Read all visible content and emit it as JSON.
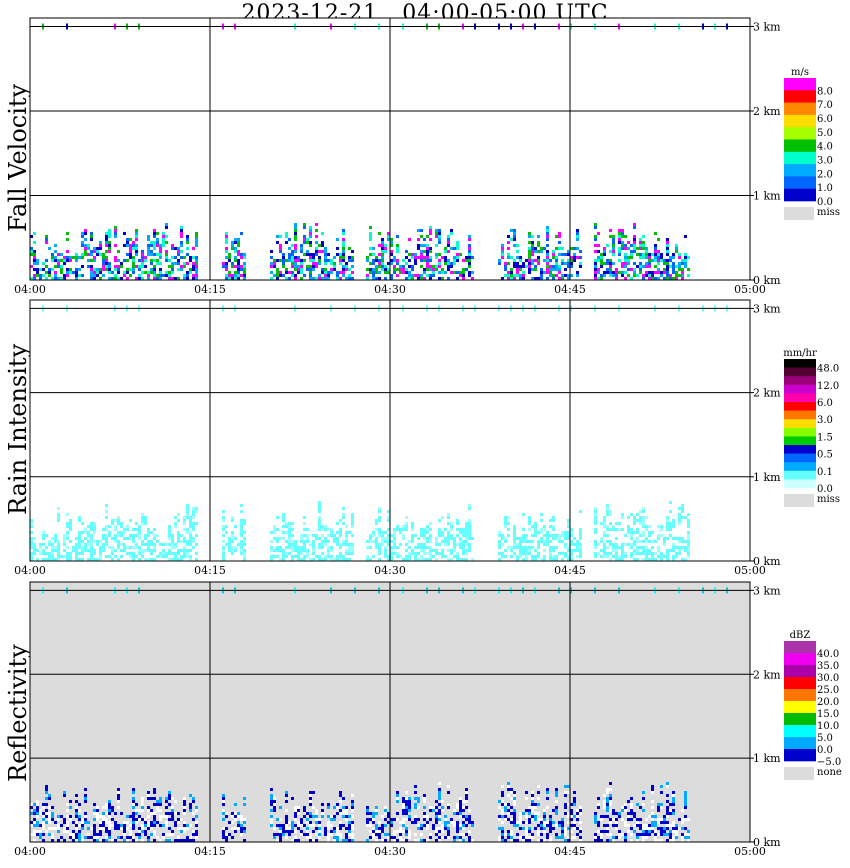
{
  "title": "2023-12-21   04:00-05:00 UTC",
  "chart_data": [
    {
      "type": "heatmap",
      "panel": "Fall Velocity",
      "unit": "m/s",
      "x_ticks": [
        "04:00",
        "04:15",
        "04:30",
        "04:45",
        "05:00"
      ],
      "y_ticks": [
        "0 km",
        "1 km",
        "2 km",
        "3 km"
      ],
      "ylim": [
        0,
        3.1
      ],
      "background": "#ffffff",
      "colorbar": {
        "colors": [
          "#ff00ff",
          "#ff0000",
          "#ff8800",
          "#ffdd00",
          "#a6ff00",
          "#00c000",
          "#00ffcc",
          "#00aaff",
          "#0066ff",
          "#0000cc"
        ],
        "labels": [
          "8.0",
          "7.0",
          "6.0",
          "5.0",
          "4.0",
          "3.0",
          "2.0",
          "1.0",
          "0.0"
        ],
        "miss_label": "miss",
        "miss_color": "#dcdcdc"
      },
      "echo_palette": [
        "#00aaff",
        "#0066ff",
        "#0000cc",
        "#00ffcc",
        "#00c000",
        "#ff00ff"
      ],
      "top_palette": [
        "#00c000",
        "#0000cc",
        "#ff00ff",
        "#00ffcc"
      ]
    },
    {
      "type": "heatmap",
      "panel": "Rain Intensity",
      "unit": "mm/hr",
      "x_ticks": [
        "04:00",
        "04:15",
        "04:30",
        "04:45",
        "05:00"
      ],
      "y_ticks": [
        "0 km",
        "1 km",
        "2 km",
        "3 km"
      ],
      "ylim": [
        0,
        3.1
      ],
      "background": "#ffffff",
      "colorbar": {
        "colors": [
          "#000000",
          "#550033",
          "#990077",
          "#cc00cc",
          "#ff00aa",
          "#ff0000",
          "#ff7700",
          "#ffdd00",
          "#88ff00",
          "#00cc00",
          "#0000cc",
          "#0066ff",
          "#00aaff",
          "#66ffff",
          "#ccffff"
        ],
        "labels": [
          "48.0",
          "12.0",
          "6.0",
          "3.0",
          "1.5",
          "0.5",
          "0.1",
          "0.0"
        ],
        "miss_label": "miss",
        "miss_color": "#dcdcdc"
      },
      "echo_palette": [
        "#66ffff",
        "#66ffff",
        "#66ffff",
        "#99ffff"
      ],
      "top_palette": [
        "#66ffff"
      ]
    },
    {
      "type": "heatmap",
      "panel": "Reflectivity",
      "unit": "dBZ",
      "x_ticks": [
        "04:00",
        "04:15",
        "04:30",
        "04:45",
        "05:00"
      ],
      "y_ticks": [
        "0 km",
        "1 km",
        "2 km",
        "3 km"
      ],
      "ylim": [
        0,
        3.1
      ],
      "background": "#dcdcdc",
      "colorbar": {
        "colors": [
          "#aa33aa",
          "#ee00ee",
          "#aa00aa",
          "#ff0000",
          "#ff7700",
          "#ffff00",
          "#00bb00",
          "#00ffff",
          "#00aaff",
          "#0000cc"
        ],
        "labels": [
          "40.0",
          "35.0",
          "30.0",
          "25.0",
          "20.0",
          "15.0",
          "10.0",
          "5.0",
          "0.0",
          "−5.0"
        ],
        "miss_label": "none",
        "miss_color": "#dcdcdc"
      },
      "echo_palette": [
        "#0000cc",
        "#0000cc",
        "#00aaff",
        "#ffffff",
        "#ffffff"
      ],
      "top_palette": [
        "#00ffff",
        "#00ccdd"
      ]
    }
  ]
}
